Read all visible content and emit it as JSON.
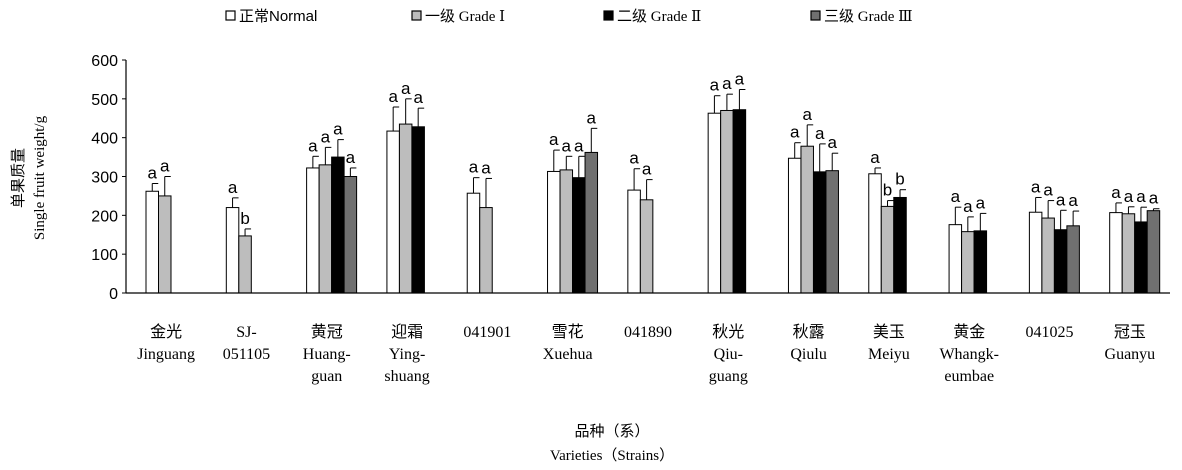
{
  "chart_data": {
    "type": "bar",
    "title": "",
    "ylabel_cn": "单果质量",
    "ylabel_en": "Single fruit weight/g",
    "xlabel_cn": "品种（系）",
    "xlabel_en": "Varieties（Strains）",
    "ylim": [
      0,
      600
    ],
    "yticks": [
      0,
      100,
      200,
      300,
      400,
      500,
      600
    ],
    "legend_position": "top",
    "categories": [
      {
        "cn": "金光",
        "en": [
          "Jinguang"
        ]
      },
      {
        "cn": "SJ-",
        "en": [
          "051105"
        ]
      },
      {
        "cn": "黄冠",
        "en": [
          "Huang-",
          "guan"
        ]
      },
      {
        "cn": "迎霜",
        "en": [
          "Ying-",
          "shuang"
        ]
      },
      {
        "cn": "041901",
        "en": []
      },
      {
        "cn": "雪花",
        "en": [
          "Xuehua"
        ]
      },
      {
        "cn": "041890",
        "en": []
      },
      {
        "cn": "秋光",
        "en": [
          "Qiu-",
          "guang"
        ]
      },
      {
        "cn": "秋露",
        "en": [
          "Qiulu"
        ]
      },
      {
        "cn": "美玉",
        "en": [
          "Meiyu"
        ]
      },
      {
        "cn": "黄金",
        "en": [
          "Whangk-",
          "eumbae"
        ]
      },
      {
        "cn": "041025",
        "en": []
      },
      {
        "cn": "冠玉",
        "en": [
          "Guanyu"
        ]
      }
    ],
    "series": [
      {
        "name": "正常Normal",
        "color": "#ffffff",
        "values": [
          262,
          220,
          322,
          417,
          257,
          313,
          265,
          463,
          347,
          307,
          176,
          208,
          207
        ],
        "errors": [
          20,
          25,
          30,
          62,
          40,
          55,
          55,
          45,
          40,
          15,
          45,
          38,
          25
        ],
        "letters": [
          "a",
          "a",
          "a",
          "a",
          "a",
          "a",
          "a",
          "a",
          "a",
          "a",
          "a",
          "a",
          "a"
        ]
      },
      {
        "name": "一级 Grade Ⅰ",
        "color": "#bdbdbd",
        "values": [
          250,
          147,
          330,
          435,
          220,
          317,
          240,
          470,
          378,
          223,
          158,
          193,
          204
        ],
        "errors": [
          50,
          18,
          45,
          65,
          75,
          35,
          52,
          42,
          55,
          15,
          38,
          45,
          18
        ],
        "letters": [
          "a",
          "b",
          "a",
          "a",
          "a",
          "a",
          "a",
          "a",
          "a",
          "b",
          "a",
          "a",
          "a"
        ]
      },
      {
        "name": "二级 Grade Ⅱ",
        "color": "#000000",
        "values": [
          null,
          null,
          350,
          428,
          null,
          297,
          null,
          472,
          312,
          246,
          160,
          163,
          183
        ],
        "errors": [
          0,
          0,
          45,
          48,
          0,
          55,
          0,
          52,
          72,
          20,
          45,
          50,
          38
        ],
        "letters": [
          "",
          "",
          "a",
          "a",
          "",
          "a",
          "",
          "a",
          "a",
          "b",
          "a",
          "a",
          "a"
        ]
      },
      {
        "name": "三级 Grade Ⅲ",
        "color": "#707070",
        "values": [
          null,
          null,
          300,
          null,
          null,
          362,
          null,
          null,
          315,
          null,
          null,
          173,
          212
        ],
        "errors": [
          0,
          0,
          22,
          0,
          0,
          62,
          0,
          0,
          45,
          0,
          0,
          38,
          5
        ],
        "letters": [
          "",
          "",
          "a",
          "",
          "",
          "a",
          "",
          "",
          "a",
          "",
          "",
          "a",
          "a"
        ]
      }
    ]
  }
}
